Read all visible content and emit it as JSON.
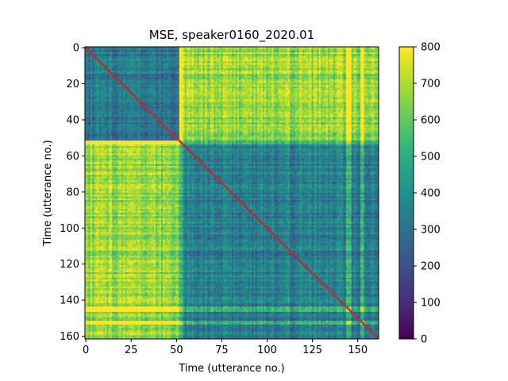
{
  "chart_data": {
    "type": "heatmap",
    "title": "MSE, speaker0160_2020.01",
    "xlabel": "Time (utterance no.)",
    "ylabel": "Time (utterance no.)",
    "n": 162,
    "xlim": [
      0,
      162
    ],
    "ylim": [
      162,
      0
    ],
    "x_ticks": [
      0,
      25,
      50,
      75,
      100,
      125,
      150
    ],
    "y_ticks": [
      0,
      20,
      40,
      60,
      80,
      100,
      120,
      140,
      160
    ],
    "colorbar": {
      "colormap": "viridis",
      "range": [
        0,
        800
      ],
      "ticks": [
        0,
        100,
        200,
        300,
        400,
        500,
        600,
        700,
        800
      ]
    },
    "diagonal_color": "#d62728",
    "grid": false,
    "regions": {
      "bright_bands": [
        52,
        53,
        144,
        145,
        146,
        152,
        153
      ],
      "early_block_range": [
        0,
        52
      ],
      "late_block_range": [
        53,
        162
      ],
      "cross_block_level": 660,
      "within_early_level": 300,
      "within_late_level": 330
    }
  }
}
